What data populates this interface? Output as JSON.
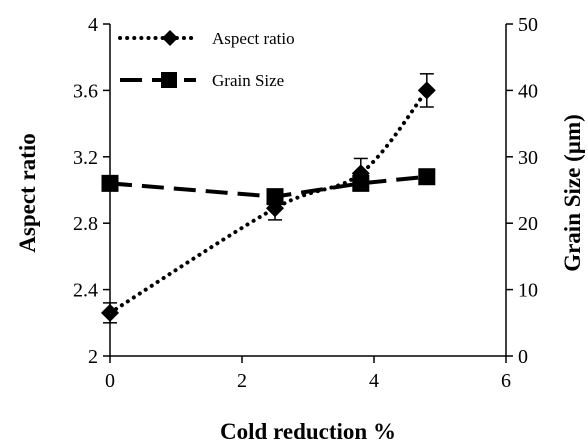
{
  "chart_data": {
    "type": "line",
    "xlabel": "Cold reduction %",
    "ylabel_left": "Aspect ratio",
    "ylabel_right": "Grain Size (µm)",
    "xlim": [
      0,
      6
    ],
    "ylim_left": [
      2,
      4
    ],
    "ylim_right": [
      0,
      50
    ],
    "x_ticks": [
      "0",
      "2",
      "4",
      "6"
    ],
    "y_left_ticks": [
      "2",
      "2.4",
      "2.8",
      "3.2",
      "3.6",
      "4"
    ],
    "y_right_ticks": [
      "0",
      "10",
      "20",
      "30",
      "40",
      "50"
    ],
    "grid": false,
    "legend_position": "top-left",
    "series": [
      {
        "name": "Aspect ratio",
        "axis": "left",
        "marker": "diamond",
        "line": "dotted",
        "color": "#000000",
        "x": [
          0,
          2.5,
          3.8,
          4.8
        ],
        "y": [
          2.26,
          2.89,
          3.1,
          3.6
        ],
        "error": [
          0.06,
          0.07,
          0.09,
          0.1
        ]
      },
      {
        "name": "Grain Size",
        "axis": "right",
        "marker": "square",
        "line": "dashed",
        "color": "#000000",
        "x": [
          0,
          2.5,
          3.8,
          4.8
        ],
        "y": [
          26,
          24,
          26,
          27
        ],
        "error": [
          0,
          0,
          0,
          0
        ]
      }
    ]
  }
}
